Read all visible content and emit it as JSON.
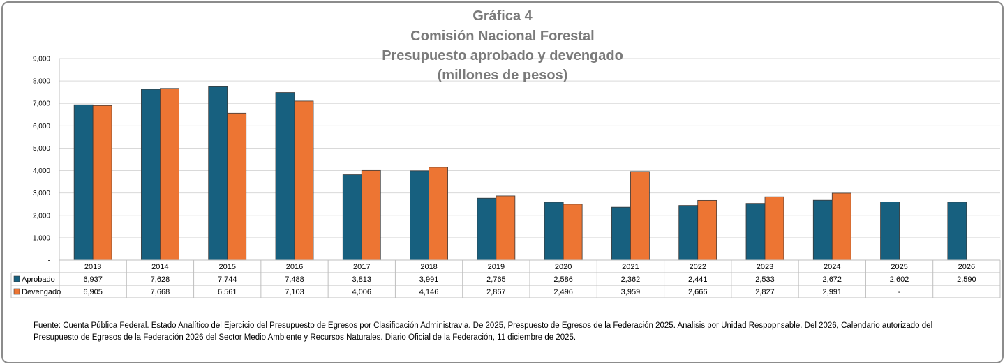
{
  "chart_data": {
    "type": "bar",
    "title_lines": [
      "Gráfica 4",
      "Comisión Nacional Forestal",
      "Presupuesto aprobado y devengado",
      "(millones de pesos)"
    ],
    "categories": [
      "2013",
      "2014",
      "2015",
      "2016",
      "2017",
      "2018",
      "2019",
      "2020",
      "2021",
      "2022",
      "2023",
      "2024",
      "2025",
      "2026"
    ],
    "series": [
      {
        "name": "Aprobado",
        "color": "#17607f",
        "values": [
          6937,
          7628,
          7744,
          7488,
          3813,
          3991,
          2765,
          2586,
          2362,
          2441,
          2533,
          2672,
          2602,
          2590
        ],
        "labels": [
          "6,937",
          "7,628",
          "7,744",
          "7,488",
          "3,813",
          "3,991",
          "2,765",
          "2,586",
          "2,362",
          "2,441",
          "2,533",
          "2,672",
          "2,602",
          "2,590"
        ]
      },
      {
        "name": "Devengado",
        "color": "#ed7533",
        "values": [
          6905,
          7668,
          6561,
          7103,
          4006,
          4146,
          2867,
          2496,
          3959,
          2666,
          2827,
          2991,
          null,
          null
        ],
        "labels": [
          "6,905",
          "7,668",
          "6,561",
          "7,103",
          "4,006",
          "4,146",
          "2,867",
          "2,496",
          "3,959",
          "2,666",
          "2,827",
          "2,991",
          "-",
          ""
        ]
      }
    ],
    "yticks": [
      0,
      1000,
      2000,
      3000,
      4000,
      5000,
      6000,
      7000,
      8000,
      9000
    ],
    "ytick_labels": [
      "-",
      "1,000",
      "2,000",
      "3,000",
      "4,000",
      "5,000",
      "6,000",
      "7,000",
      "8,000",
      "9,000"
    ],
    "ylim": [
      0,
      9000
    ],
    "xlabel": "",
    "ylabel": "",
    "grid": true,
    "legend": "data-table-below"
  },
  "footnote": {
    "line1": "Fuente:  Cuenta Pública Federal. Estado Analítico del Ejercicio del Presupuesto de Egresos por Clasificación Administravia. De 2025, Prespuesto de Egresos de la Federación 2025. Analisis por Unidad Respopnsable. Del 2026, Calendario autorizado del",
    "line2": "Presupuesto de Egresos de la Federación 2026 del Sector Medio Ambiente y Recursos Naturales. Diario Oficial de la Federación, 11 diciembre de 2025."
  }
}
